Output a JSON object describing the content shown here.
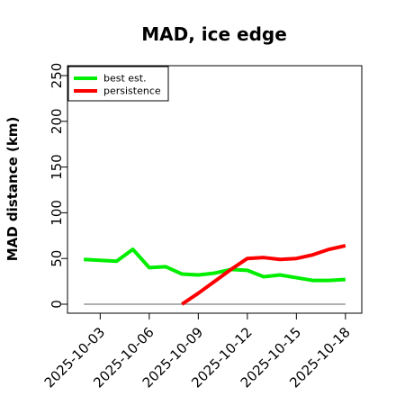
{
  "chart_data": {
    "type": "line",
    "title": "MAD, ice edge",
    "xlabel": "",
    "ylabel": "MAD distance (km)",
    "xlim": [
      "2025-10-01",
      "2025-10-19"
    ],
    "ylim": [
      0,
      250
    ],
    "y_ticks": [
      0,
      50,
      100,
      150,
      200,
      250
    ],
    "x_ticks": [
      "2025-10-03",
      "2025-10-06",
      "2025-10-09",
      "2025-10-12",
      "2025-10-15",
      "2025-10-18"
    ],
    "legend_position": "top-left",
    "grid": false,
    "series": [
      {
        "name": "best est.",
        "color": "#00ee00",
        "x": [
          "2025-10-02",
          "2025-10-03",
          "2025-10-04",
          "2025-10-05",
          "2025-10-06",
          "2025-10-07",
          "2025-10-08",
          "2025-10-09",
          "2025-10-10",
          "2025-10-11",
          "2025-10-12",
          "2025-10-13",
          "2025-10-14",
          "2025-10-15",
          "2025-10-16",
          "2025-10-17",
          "2025-10-18"
        ],
        "values": [
          49,
          48,
          47,
          60,
          40,
          41,
          33,
          32,
          34,
          38,
          37,
          30,
          32,
          29,
          26,
          26,
          27
        ]
      },
      {
        "name": "persistence",
        "color": "#ff0000",
        "x": [
          "2025-10-08",
          "2025-10-09",
          "2025-10-10",
          "2025-10-11",
          "2025-10-12",
          "2025-10-13",
          "2025-10-14",
          "2025-10-15",
          "2025-10-16",
          "2025-10-17",
          "2025-10-18"
        ],
        "values": [
          0,
          12,
          25,
          38,
          50,
          51,
          49,
          50,
          54,
          60,
          64
        ]
      },
      {
        "name": "",
        "color": "#808080",
        "x": [
          "2025-10-02",
          "2025-10-18"
        ],
        "values": [
          0,
          0
        ]
      }
    ]
  }
}
